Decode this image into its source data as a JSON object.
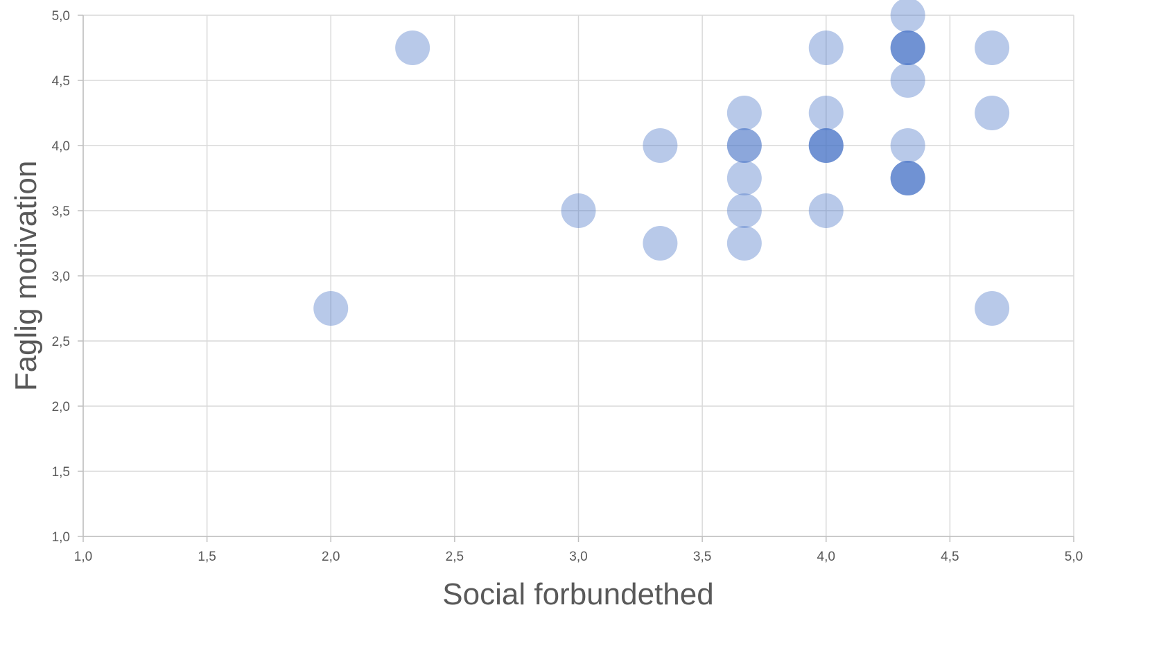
{
  "chart_data": {
    "type": "scatter",
    "xlabel": "Social forbundethed",
    "ylabel": "Faglig motivation",
    "xlim": [
      1.0,
      5.0
    ],
    "ylim": [
      1.0,
      5.0
    ],
    "x_ticks": [
      "1,0",
      "1,5",
      "2,0",
      "2,5",
      "3,0",
      "3,5",
      "4,0",
      "4,5",
      "5,0"
    ],
    "y_ticks": [
      "1,0",
      "1,5",
      "2,0",
      "2,5",
      "3,0",
      "3,5",
      "4,0",
      "4,5",
      "5,0"
    ],
    "grid": true,
    "legend": "none",
    "marker_color": "#4472C4",
    "points": [
      {
        "x": 2.0,
        "y": 2.75
      },
      {
        "x": 2.33,
        "y": 4.75
      },
      {
        "x": 3.0,
        "y": 3.5
      },
      {
        "x": 3.33,
        "y": 4.0
      },
      {
        "x": 3.33,
        "y": 3.25
      },
      {
        "x": 3.67,
        "y": 4.25
      },
      {
        "x": 3.67,
        "y": 4.0
      },
      {
        "x": 3.67,
        "y": 4.0
      },
      {
        "x": 3.67,
        "y": 3.75
      },
      {
        "x": 3.67,
        "y": 3.5
      },
      {
        "x": 3.67,
        "y": 3.25
      },
      {
        "x": 4.0,
        "y": 4.75
      },
      {
        "x": 4.0,
        "y": 4.25
      },
      {
        "x": 4.0,
        "y": 4.0
      },
      {
        "x": 4.0,
        "y": 4.0
      },
      {
        "x": 4.0,
        "y": 4.0
      },
      {
        "x": 4.0,
        "y": 3.5
      },
      {
        "x": 4.33,
        "y": 5.0
      },
      {
        "x": 4.33,
        "y": 4.75
      },
      {
        "x": 4.33,
        "y": 4.75
      },
      {
        "x": 4.33,
        "y": 4.75
      },
      {
        "x": 4.33,
        "y": 4.5
      },
      {
        "x": 4.33,
        "y": 4.0
      },
      {
        "x": 4.33,
        "y": 3.75
      },
      {
        "x": 4.33,
        "y": 3.75
      },
      {
        "x": 4.33,
        "y": 3.75
      },
      {
        "x": 4.67,
        "y": 4.75
      },
      {
        "x": 4.67,
        "y": 4.25
      },
      {
        "x": 4.67,
        "y": 2.75
      }
    ]
  }
}
